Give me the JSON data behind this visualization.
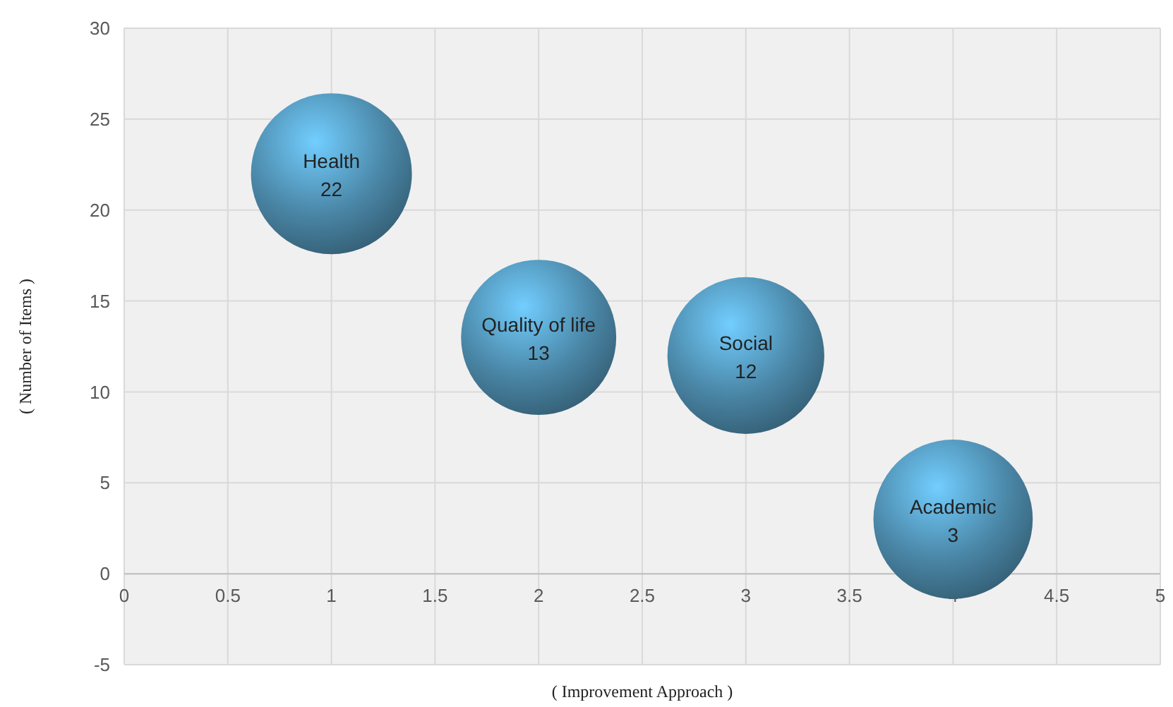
{
  "chart_data": {
    "type": "bubble",
    "xlabel": "( Improvement Approach )",
    "ylabel": "( Number of Items )",
    "x": [
      1,
      2,
      3,
      4
    ],
    "series": [
      {
        "color": "#4a86a6",
        "values": [
          22,
          13,
          12,
          3
        ],
        "sizes": [
          1,
          0.93,
          0.95,
          0.98
        ]
      }
    ],
    "annotations": [
      {
        "text": "Health",
        "x": 1,
        "y": 22
      },
      {
        "text": "Quality of life",
        "x": 2,
        "y": 13
      },
      {
        "text": "Social",
        "x": 3,
        "y": 12
      },
      {
        "text": "Academic",
        "x": 4,
        "y": 3
      }
    ],
    "data_labels": true,
    "xlim": [
      0,
      5
    ],
    "xticks": [
      0,
      0.5,
      1,
      1.5,
      2,
      2.5,
      3,
      3.5,
      4,
      4.5,
      5
    ],
    "ylim": [
      -5,
      30
    ],
    "yticks": [
      -5,
      0,
      5,
      10,
      15,
      20,
      25,
      30
    ],
    "grid": true
  }
}
